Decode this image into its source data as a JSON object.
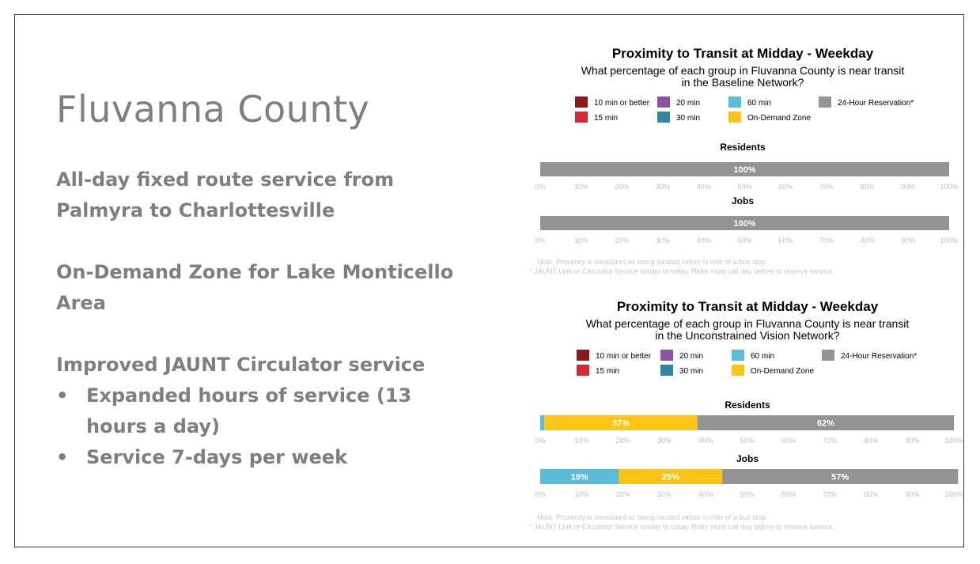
{
  "slide": {
    "title": "Fluvanna County",
    "paragraphs": [
      {
        "line1": "All-day fixed route service from",
        "line2": "Palmyra to Charlottesville"
      },
      {
        "line1": "On-Demand Zone for Lake Monticello",
        "line2": "Area"
      }
    ],
    "section_heading": "Improved JAUNT Circulator service",
    "bullet_glyph": "•",
    "bullets": [
      {
        "line1": "Expanded hours of service (13",
        "line2": "hours a day)"
      },
      {
        "line1": "Service 7-days per week",
        "line2": ""
      }
    ]
  },
  "chart_data": [
    {
      "type": "bar",
      "orientation": "horizontal-stacked",
      "title": "Proximity to Transit at Midday - Weekday",
      "subtitle_lines": [
        "What percentage of each group in Fluvanna County is near transit",
        "in the Baseline Network?"
      ],
      "legend": [
        {
          "name": "10 min or better",
          "color": "#8b1a1a"
        },
        {
          "name": "15 min",
          "color": "#d42a3c"
        },
        {
          "name": "20 min",
          "color": "#8e52a6"
        },
        {
          "name": "30 min",
          "color": "#2f85a2"
        },
        {
          "name": "60 min",
          "color": "#5bbbd8"
        },
        {
          "name": "On-Demand Zone",
          "color": "#fcc419"
        },
        {
          "name": "24-Hour Reservation*",
          "color": "#939393"
        }
      ],
      "xlim": [
        0,
        100
      ],
      "ticks": [
        "0%",
        "10%",
        "20%",
        "30%",
        "40%",
        "50%",
        "60%",
        "70%",
        "80%",
        "90%",
        "100%"
      ],
      "groups": [
        {
          "name": "Residents",
          "segments": [
            {
              "series": "24-Hour Reservation*",
              "value": 100,
              "label": "100%"
            }
          ]
        },
        {
          "name": "Jobs",
          "segments": [
            {
              "series": "24-Hour Reservation*",
              "value": 100,
              "label": "100%"
            }
          ]
        }
      ],
      "notes": [
        "Note: Proximity is measured as being located within ½ mile of a bus stop.",
        "* JAUNT Link or Circulator Service similar to today. Rider must call day before to reserve service."
      ]
    },
    {
      "type": "bar",
      "orientation": "horizontal-stacked",
      "title": "Proximity to Transit at Midday - Weekday",
      "subtitle_lines": [
        "What percentage of each group in Fluvanna County is near transit",
        "in the Unconstrained Vision Network?"
      ],
      "legend": [
        {
          "name": "10 min or better",
          "color": "#8b1a1a"
        },
        {
          "name": "15 min",
          "color": "#d42a3c"
        },
        {
          "name": "20 min",
          "color": "#8e52a6"
        },
        {
          "name": "30 min",
          "color": "#2f85a2"
        },
        {
          "name": "60 min",
          "color": "#5bbbd8"
        },
        {
          "name": "On-Demand Zone",
          "color": "#fcc419"
        },
        {
          "name": "24-Hour Reservation*",
          "color": "#939393"
        }
      ],
      "xlim": [
        0,
        100
      ],
      "ticks": [
        "0%",
        "10%",
        "20%",
        "30%",
        "40%",
        "50%",
        "60%",
        "70%",
        "80%",
        "90%",
        "100%"
      ],
      "groups": [
        {
          "name": "Residents",
          "segments": [
            {
              "series": "60 min",
              "value": 1,
              "label": ""
            },
            {
              "series": "On-Demand Zone",
              "value": 37,
              "label": "37%"
            },
            {
              "series": "24-Hour Reservation*",
              "value": 62,
              "label": "62%"
            }
          ]
        },
        {
          "name": "Jobs",
          "segments": [
            {
              "series": "60 min",
              "value": 19,
              "label": "19%"
            },
            {
              "series": "On-Demand Zone",
              "value": 25,
              "label": "25%"
            },
            {
              "series": "24-Hour Reservation*",
              "value": 57,
              "label": "57%"
            }
          ]
        }
      ],
      "notes": [
        "Note: Proximity is measured as being located within ½ mile of a bus stop.",
        "* JAUNT Link or Circulator Service similar to today. Rider must call day before to reserve service."
      ]
    }
  ]
}
